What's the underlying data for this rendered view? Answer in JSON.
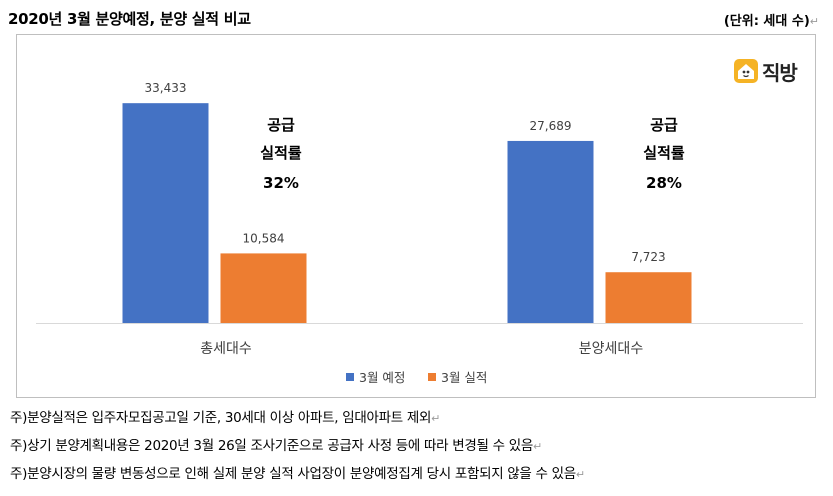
{
  "header": {
    "title": "2020년 3월 분양예정, 분양 실적 비교",
    "unit": "(단위: 세대 수)"
  },
  "logo": {
    "text": "직방",
    "icon": "house-logo-icon",
    "color": "#f5b325"
  },
  "chart_data": {
    "type": "bar",
    "categories": [
      "총세대수",
      "분양세대수"
    ],
    "series": [
      {
        "name": "3월 예정",
        "color": "#4472c4",
        "values": [
          33433,
          27689
        ],
        "labels": [
          "33,433",
          "27,689"
        ]
      },
      {
        "name": "3월 실적",
        "color": "#ed7d31",
        "values": [
          10584,
          7723
        ],
        "labels": [
          "10,584",
          "7,723"
        ]
      }
    ],
    "ylim": [
      0,
      40000
    ],
    "grid": false,
    "legend": "bottom",
    "annotations": [
      {
        "line1": "공급",
        "line2": "실적률",
        "line3": "32%"
      },
      {
        "line1": "공급",
        "line2": "실적률",
        "line3": "28%"
      }
    ]
  },
  "notes": [
    "주)분양실적은 입주자모집공고일 기준, 30세대 이상 아파트, 임대아파트 제외",
    "주)상기 분양계획내용은 2020년 3월 26일 조사기준으로 공급자 사정 등에 따라 변경될 수 있음",
    "주)분양시장의 물량 변동성으로 인해 실제 분양 실적 사업장이 분양예정집계 당시 포함되지 않을 수 있음"
  ],
  "return_mark": "↵"
}
